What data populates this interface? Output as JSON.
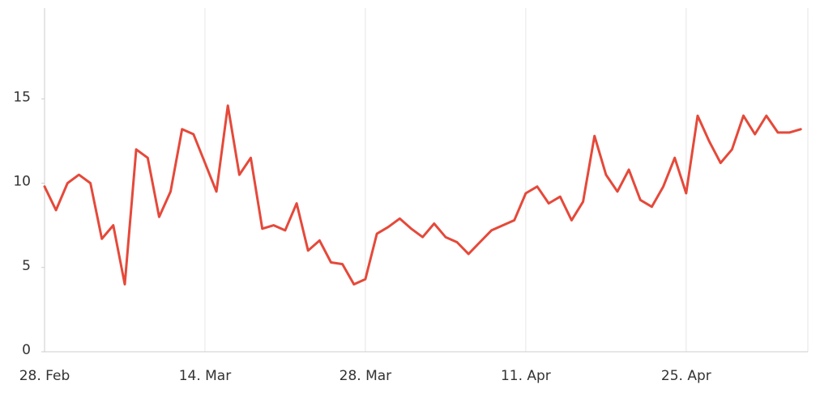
{
  "chart_data": {
    "type": "line",
    "categories": [
      "28. Feb",
      null,
      null,
      null,
      null,
      null,
      null,
      null,
      null,
      null,
      null,
      null,
      null,
      null,
      "14. Mar",
      null,
      null,
      null,
      null,
      null,
      null,
      null,
      null,
      null,
      null,
      null,
      null,
      null,
      "28. Mar",
      null,
      null,
      null,
      null,
      null,
      null,
      null,
      null,
      null,
      null,
      null,
      null,
      null,
      "11. Apr",
      null,
      null,
      null,
      null,
      null,
      null,
      null,
      null,
      null,
      null,
      null,
      null,
      null,
      "25. Apr",
      null,
      null,
      null,
      null,
      null,
      null,
      null,
      null,
      null,
      null
    ],
    "values": [
      9.8,
      8.4,
      10.0,
      10.5,
      10.0,
      6.7,
      7.5,
      4.0,
      12.0,
      11.5,
      8.0,
      9.5,
      13.2,
      12.9,
      11.2,
      9.5,
      14.6,
      10.5,
      11.5,
      7.3,
      7.5,
      7.2,
      8.8,
      6.0,
      6.6,
      5.3,
      5.2,
      4.0,
      4.3,
      7.0,
      7.4,
      7.9,
      7.3,
      6.8,
      7.6,
      6.8,
      6.5,
      5.8,
      6.5,
      7.2,
      7.5,
      7.8,
      9.4,
      9.8,
      8.8,
      9.2,
      7.8,
      8.9,
      12.8,
      10.5,
      9.5,
      10.8,
      9.0,
      8.6,
      9.8,
      11.5,
      9.4,
      14.0,
      12.5,
      11.2,
      12.0,
      14.0,
      12.9,
      14.0,
      13.0,
      13.0,
      13.2
    ],
    "color": "#e5493a",
    "ylim": [
      0,
      20
    ],
    "yticks": [
      0,
      5,
      10,
      15
    ]
  }
}
